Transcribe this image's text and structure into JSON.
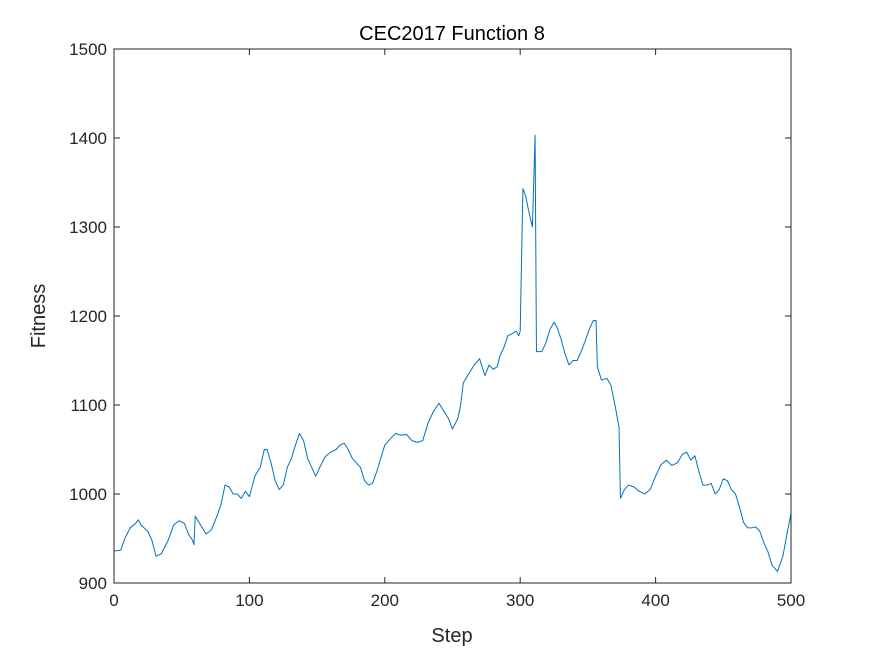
{
  "chart_data": {
    "type": "line",
    "title": "CEC2017 Function 8",
    "xlabel": "Step",
    "ylabel": "Fitness",
    "xlim": [
      0,
      500
    ],
    "ylim": [
      900,
      1500
    ],
    "xticks": [
      0,
      100,
      200,
      300,
      400,
      500
    ],
    "yticks": [
      900,
      1000,
      1100,
      1200,
      1300,
      1400,
      1500
    ],
    "x_tick_labels": [
      "0",
      "100",
      "200",
      "300",
      "400",
      "500"
    ],
    "y_tick_labels": [
      "900",
      "1000",
      "1100",
      "1200",
      "1300",
      "1400",
      "1500"
    ],
    "grid": false,
    "line_color": "#0072BD",
    "series": [
      {
        "points": [
          [
            0,
            936
          ],
          [
            5,
            937
          ],
          [
            8,
            950
          ],
          [
            12,
            962
          ],
          [
            16,
            967
          ],
          [
            18,
            971
          ],
          [
            20,
            965
          ],
          [
            25,
            958
          ],
          [
            28,
            948
          ],
          [
            31,
            930
          ],
          [
            35,
            933
          ],
          [
            40,
            948
          ],
          [
            44,
            965
          ],
          [
            48,
            970
          ],
          [
            52,
            967
          ],
          [
            55,
            955
          ],
          [
            58,
            948
          ],
          [
            59,
            943
          ],
          [
            60,
            975
          ],
          [
            64,
            965
          ],
          [
            68,
            955
          ],
          [
            72,
            960
          ],
          [
            76,
            975
          ],
          [
            79,
            988
          ],
          [
            82,
            1010
          ],
          [
            85,
            1008
          ],
          [
            88,
            1000
          ],
          [
            91,
            1000
          ],
          [
            94,
            995
          ],
          [
            97,
            1003
          ],
          [
            100,
            997
          ],
          [
            104,
            1020
          ],
          [
            108,
            1030
          ],
          [
            111,
            1050
          ],
          [
            113,
            1050
          ],
          [
            116,
            1035
          ],
          [
            119,
            1015
          ],
          [
            122,
            1005
          ],
          [
            125,
            1010
          ],
          [
            128,
            1030
          ],
          [
            131,
            1040
          ],
          [
            134,
            1055
          ],
          [
            137,
            1068
          ],
          [
            140,
            1060
          ],
          [
            143,
            1040
          ],
          [
            146,
            1030
          ],
          [
            149,
            1020
          ],
          [
            152,
            1030
          ],
          [
            156,
            1042
          ],
          [
            160,
            1047
          ],
          [
            164,
            1050
          ],
          [
            167,
            1055
          ],
          [
            170,
            1057
          ],
          [
            173,
            1050
          ],
          [
            176,
            1040
          ],
          [
            179,
            1035
          ],
          [
            182,
            1030
          ],
          [
            185,
            1015
          ],
          [
            188,
            1010
          ],
          [
            191,
            1012
          ],
          [
            194,
            1025
          ],
          [
            197,
            1040
          ],
          [
            200,
            1055
          ],
          [
            204,
            1062
          ],
          [
            208,
            1068
          ],
          [
            212,
            1066
          ],
          [
            216,
            1067
          ],
          [
            220,
            1060
          ],
          [
            224,
            1058
          ],
          [
            228,
            1060
          ],
          [
            232,
            1080
          ],
          [
            236,
            1093
          ],
          [
            240,
            1102
          ],
          [
            244,
            1092
          ],
          [
            247,
            1085
          ],
          [
            250,
            1073
          ],
          [
            254,
            1085
          ],
          [
            256,
            1100
          ],
          [
            258,
            1125
          ],
          [
            262,
            1135
          ],
          [
            266,
            1145
          ],
          [
            270,
            1152
          ],
          [
            272,
            1142
          ],
          [
            274,
            1133
          ],
          [
            277,
            1145
          ],
          [
            280,
            1140
          ],
          [
            283,
            1143
          ],
          [
            285,
            1155
          ],
          [
            288,
            1165
          ],
          [
            291,
            1178
          ],
          [
            294,
            1180
          ],
          [
            297,
            1183
          ],
          [
            299,
            1178
          ],
          [
            300,
            1183
          ],
          [
            302,
            1343
          ],
          [
            304,
            1335
          ],
          [
            306,
            1320
          ],
          [
            309,
            1300
          ],
          [
            311,
            1403
          ],
          [
            312,
            1160
          ],
          [
            316,
            1160
          ],
          [
            319,
            1170
          ],
          [
            322,
            1185
          ],
          [
            325,
            1193
          ],
          [
            327,
            1188
          ],
          [
            330,
            1175
          ],
          [
            333,
            1158
          ],
          [
            336,
            1145
          ],
          [
            339,
            1150
          ],
          [
            342,
            1150
          ],
          [
            345,
            1160
          ],
          [
            348,
            1172
          ],
          [
            351,
            1185
          ],
          [
            354,
            1195
          ],
          [
            356,
            1195
          ],
          [
            357,
            1143
          ],
          [
            360,
            1128
          ],
          [
            364,
            1130
          ],
          [
            367,
            1122
          ],
          [
            370,
            1100
          ],
          [
            373,
            1075
          ],
          [
            374,
            995
          ],
          [
            377,
            1005
          ],
          [
            380,
            1010
          ],
          [
            384,
            1008
          ],
          [
            388,
            1003
          ],
          [
            392,
            1000
          ],
          [
            396,
            1005
          ],
          [
            400,
            1020
          ],
          [
            404,
            1033
          ],
          [
            408,
            1038
          ],
          [
            412,
            1032
          ],
          [
            416,
            1035
          ],
          [
            420,
            1045
          ],
          [
            423,
            1047
          ],
          [
            426,
            1038
          ],
          [
            429,
            1043
          ],
          [
            432,
            1025
          ],
          [
            435,
            1010
          ],
          [
            438,
            1010
          ],
          [
            441,
            1012
          ],
          [
            444,
            1000
          ],
          [
            447,
            1005
          ],
          [
            450,
            1017
          ],
          [
            453,
            1015
          ],
          [
            456,
            1005
          ],
          [
            459,
            1000
          ],
          [
            462,
            985
          ],
          [
            465,
            968
          ],
          [
            468,
            962
          ],
          [
            471,
            962
          ],
          [
            474,
            963
          ],
          [
            477,
            958
          ],
          [
            480,
            945
          ],
          [
            483,
            935
          ],
          [
            486,
            920
          ],
          [
            490,
            913
          ],
          [
            494,
            930
          ],
          [
            497,
            955
          ],
          [
            500,
            978
          ]
        ]
      }
    ]
  }
}
